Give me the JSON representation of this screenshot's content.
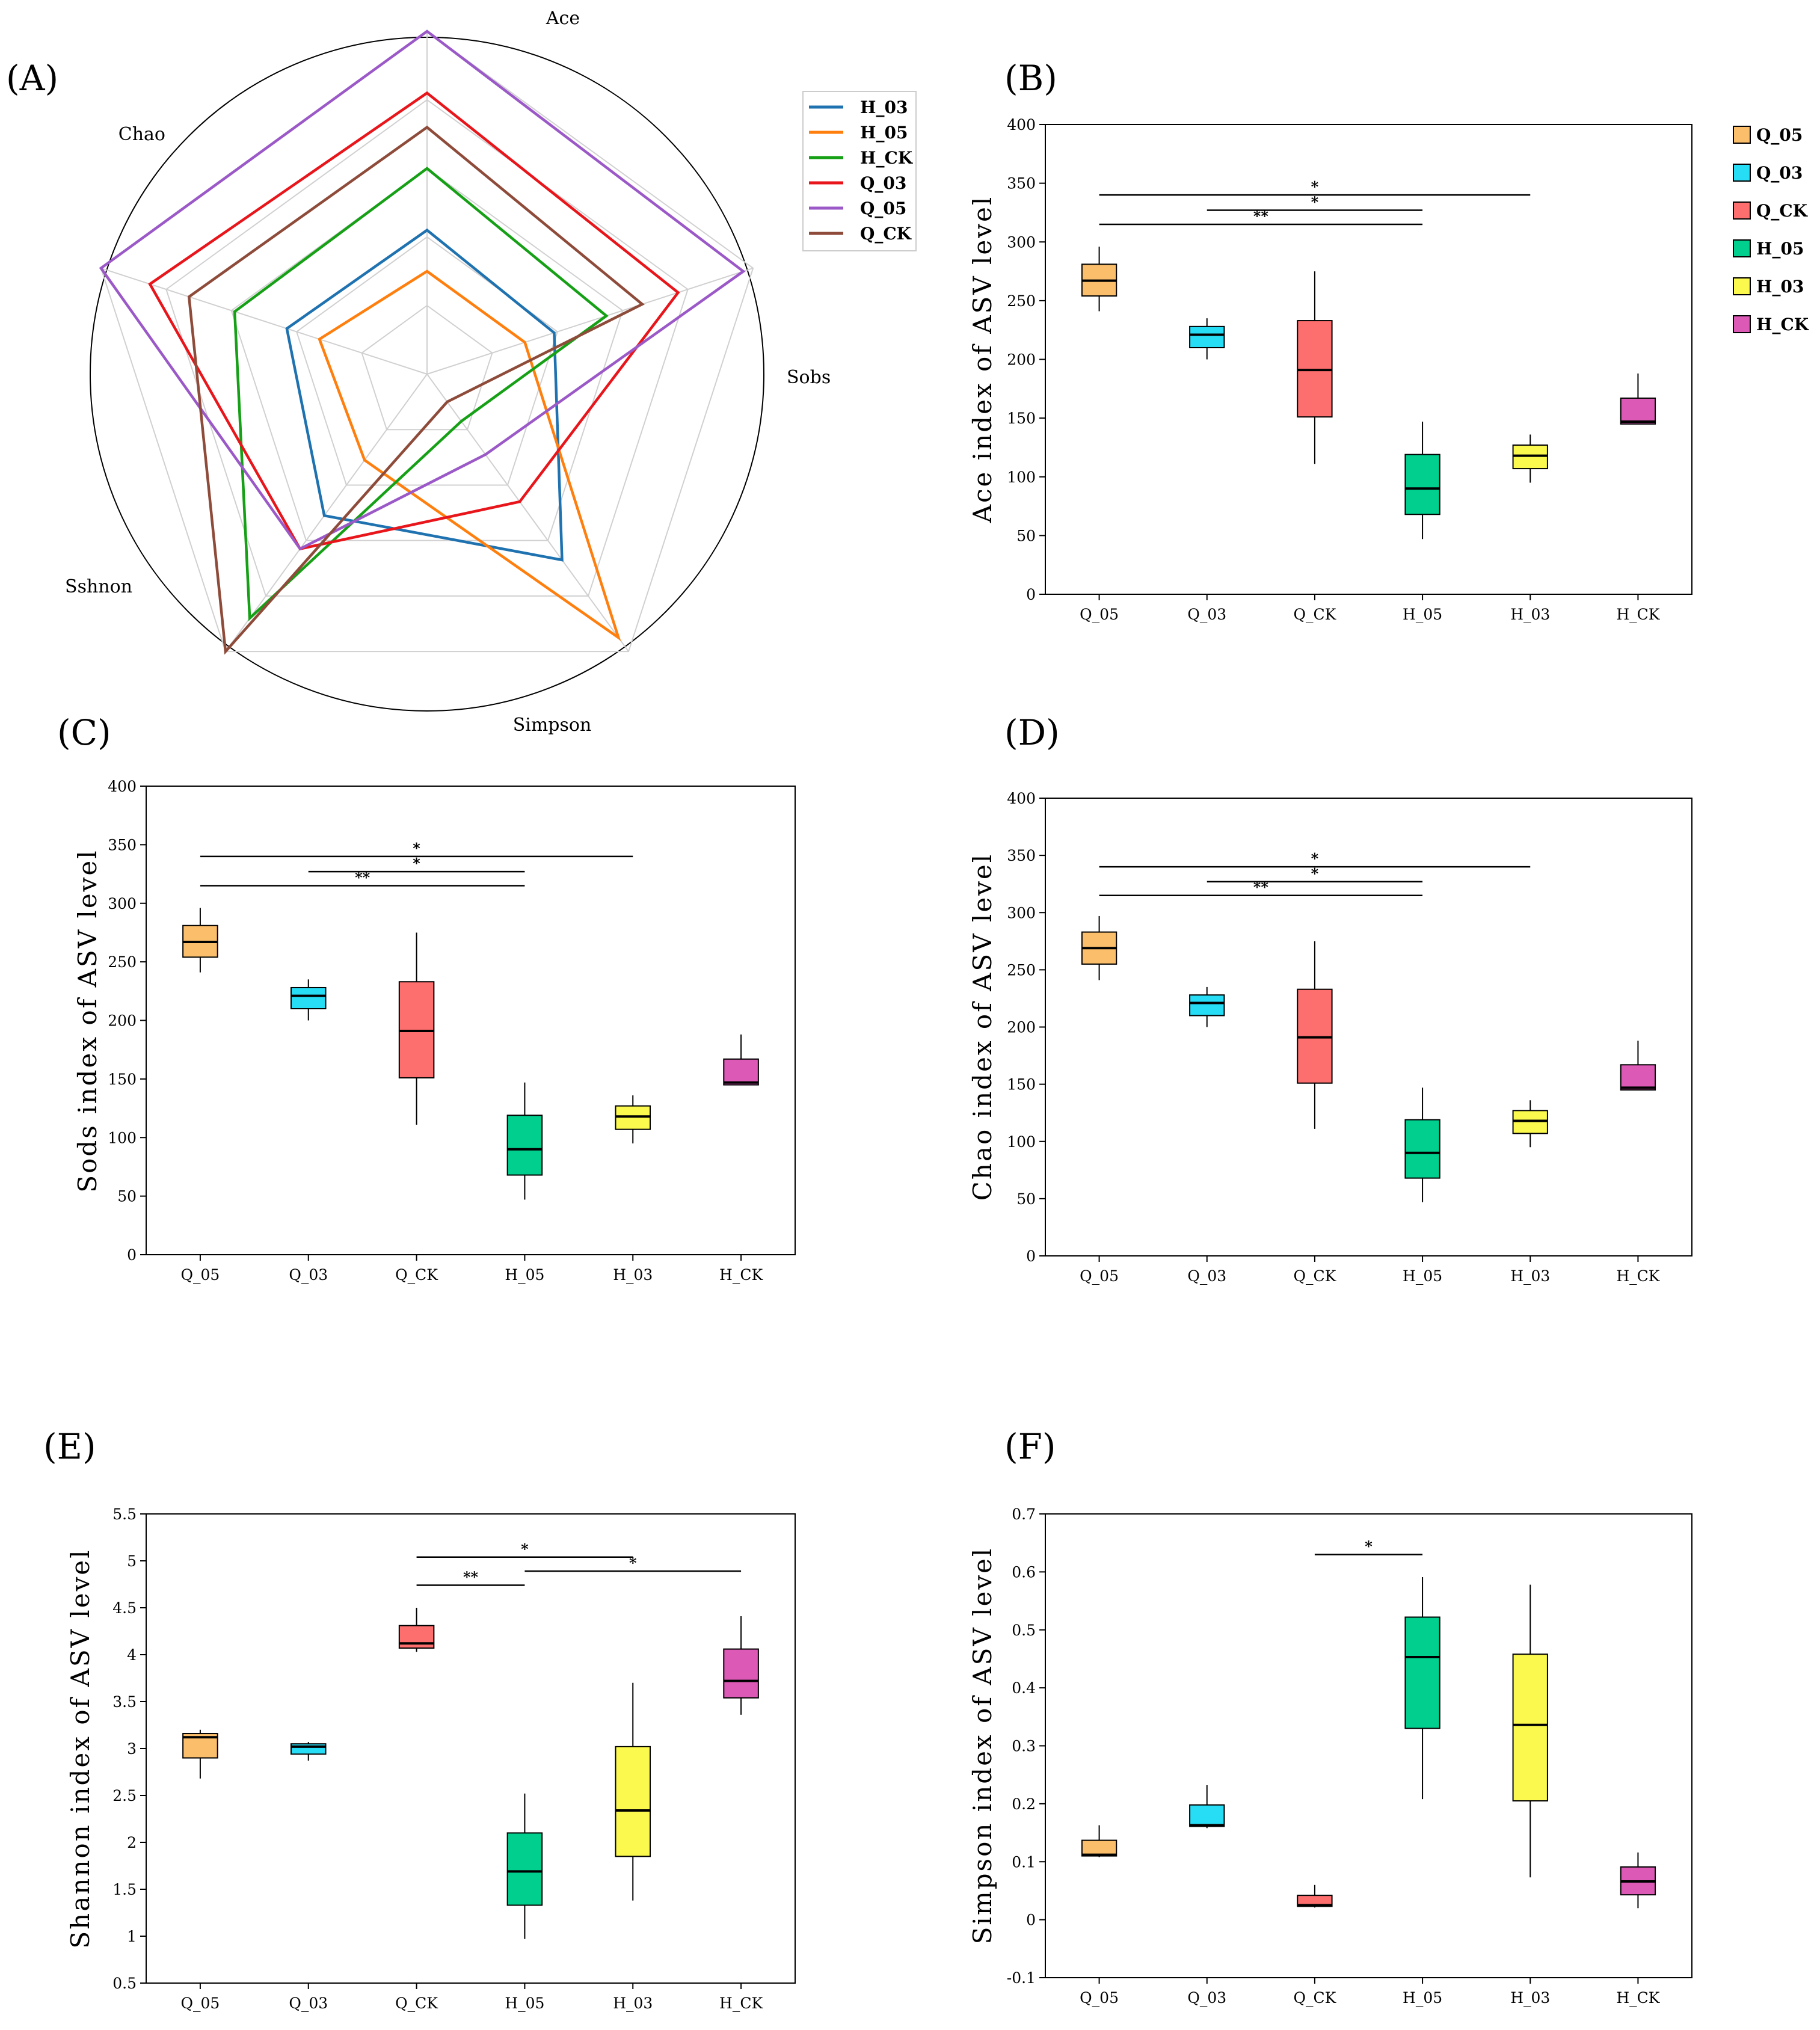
{
  "colors": {
    "Q_05": "#FBBE6B",
    "Q_03": "#27DDF6",
    "Q_CK": "#FD6E6E",
    "H_05": "#00CF8E",
    "H_03": "#FBF94E",
    "H_CK": "#DC5AB6"
  },
  "chart_data": [
    {
      "id": "A",
      "label": "(A)",
      "type": "radar",
      "axes": [
        "Ace",
        "Sobs",
        "Simpson",
        "Sshnon",
        "Chao"
      ],
      "series": [
        {
          "name": "H_03",
          "color": "#1F72B0",
          "values": [
            0.42,
            0.39,
            0.67,
            0.51,
            0.43
          ]
        },
        {
          "name": "H_05",
          "color": "#FF7F0E",
          "values": [
            0.3,
            0.3,
            0.95,
            0.31,
            0.33
          ]
        },
        {
          "name": "H_CK",
          "color": "#16A016",
          "values": [
            0.6,
            0.55,
            0.17,
            0.88,
            0.59
          ]
        },
        {
          "name": "Q_03",
          "color": "#E8151B",
          "values": [
            0.82,
            0.77,
            0.46,
            0.63,
            0.85
          ]
        },
        {
          "name": "Q_05",
          "color": "#9B59C8",
          "values": [
            1.0,
            0.97,
            0.29,
            0.63,
            1.0
          ]
        },
        {
          "name": "Q_CK",
          "color": "#8E4B3A",
          "values": [
            0.72,
            0.66,
            0.1,
            1.0,
            0.73
          ]
        }
      ]
    },
    {
      "id": "B",
      "label": "(B)",
      "type": "box",
      "ylabel": "Ace index of ASV level",
      "ylim": [
        0,
        400
      ],
      "ticks": [
        0,
        50,
        100,
        150,
        200,
        250,
        300,
        350,
        400
      ],
      "categories": [
        "Q_05",
        "Q_03",
        "Q_CK",
        "H_05",
        "H_03",
        "H_CK"
      ],
      "boxes": [
        {
          "name": "Q_05",
          "whislo": 241,
          "q1": 254,
          "med": 267,
          "q3": 281,
          "whishi": 296
        },
        {
          "name": "Q_03",
          "whislo": 200,
          "q1": 210,
          "med": 221,
          "q3": 228,
          "whishi": 235
        },
        {
          "name": "Q_CK",
          "whislo": 111,
          "q1": 151,
          "med": 191,
          "q3": 233,
          "whishi": 275
        },
        {
          "name": "H_05",
          "whislo": 47,
          "q1": 68,
          "med": 90,
          "q3": 119,
          "whishi": 147
        },
        {
          "name": "H_03",
          "whislo": 95,
          "q1": 107,
          "med": 118,
          "q3": 127,
          "whishi": 136
        },
        {
          "name": "H_CK",
          "whislo": 145,
          "q1": 145,
          "med": 147,
          "q3": 167,
          "whishi": 188
        }
      ],
      "sig": [
        {
          "from": 0,
          "to": 4,
          "y": 340,
          "label": "*"
        },
        {
          "from": 1,
          "to": 3,
          "y": 327,
          "label": "*"
        },
        {
          "from": 0,
          "to": 3,
          "y": 315,
          "label": "**"
        }
      ],
      "legend": [
        "Q_05",
        "Q_03",
        "Q_CK",
        "H_05",
        "H_03",
        "H_CK"
      ]
    },
    {
      "id": "C",
      "label": "(C)",
      "type": "box",
      "ylabel": "Sods index of ASV level",
      "ylim": [
        0,
        400
      ],
      "ticks": [
        0,
        50,
        100,
        150,
        200,
        250,
        300,
        350,
        400
      ],
      "categories": [
        "Q_05",
        "Q_03",
        "Q_CK",
        "H_05",
        "H_03",
        "H_CK"
      ],
      "boxes": [
        {
          "name": "Q_05",
          "whislo": 241,
          "q1": 254,
          "med": 267,
          "q3": 281,
          "whishi": 296
        },
        {
          "name": "Q_03",
          "whislo": 200,
          "q1": 210,
          "med": 221,
          "q3": 228,
          "whishi": 235
        },
        {
          "name": "Q_CK",
          "whislo": 111,
          "q1": 151,
          "med": 191,
          "q3": 233,
          "whishi": 275
        },
        {
          "name": "H_05",
          "whislo": 47,
          "q1": 68,
          "med": 90,
          "q3": 119,
          "whishi": 147
        },
        {
          "name": "H_03",
          "whislo": 95,
          "q1": 107,
          "med": 118,
          "q3": 127,
          "whishi": 136
        },
        {
          "name": "H_CK",
          "whislo": 145,
          "q1": 145,
          "med": 147,
          "q3": 167,
          "whishi": 188
        }
      ],
      "sig": [
        {
          "from": 0,
          "to": 4,
          "y": 340,
          "label": "*"
        },
        {
          "from": 1,
          "to": 3,
          "y": 327,
          "label": "*"
        },
        {
          "from": 0,
          "to": 3,
          "y": 315,
          "label": "**"
        }
      ]
    },
    {
      "id": "D",
      "label": "(D)",
      "type": "box",
      "ylabel": "Chao index of ASV level",
      "ylim": [
        0,
        400
      ],
      "ticks": [
        0,
        50,
        100,
        150,
        200,
        250,
        300,
        350,
        400
      ],
      "categories": [
        "Q_05",
        "Q_03",
        "Q_CK",
        "H_05",
        "H_03",
        "H_CK"
      ],
      "boxes": [
        {
          "name": "Q_05",
          "whislo": 241,
          "q1": 255,
          "med": 269,
          "q3": 283,
          "whishi": 297
        },
        {
          "name": "Q_03",
          "whislo": 200,
          "q1": 210,
          "med": 221,
          "q3": 228,
          "whishi": 235
        },
        {
          "name": "Q_CK",
          "whislo": 111,
          "q1": 151,
          "med": 191,
          "q3": 233,
          "whishi": 275
        },
        {
          "name": "H_05",
          "whislo": 47,
          "q1": 68,
          "med": 90,
          "q3": 119,
          "whishi": 147
        },
        {
          "name": "H_03",
          "whislo": 95,
          "q1": 107,
          "med": 118,
          "q3": 127,
          "whishi": 136
        },
        {
          "name": "H_CK",
          "whislo": 145,
          "q1": 145,
          "med": 147,
          "q3": 167,
          "whishi": 188
        }
      ],
      "sig": [
        {
          "from": 0,
          "to": 4,
          "y": 340,
          "label": "*"
        },
        {
          "from": 1,
          "to": 3,
          "y": 327,
          "label": "*"
        },
        {
          "from": 0,
          "to": 3,
          "y": 315,
          "label": "**"
        }
      ]
    },
    {
      "id": "E",
      "label": "(E)",
      "type": "box",
      "ylabel": "Shannon index of ASV level",
      "ylim": [
        0.5,
        5.5
      ],
      "ticks": [
        0.5,
        1,
        1.5,
        2,
        2.5,
        3,
        3.5,
        4,
        4.5,
        5,
        5.5
      ],
      "categories": [
        "Q_05",
        "Q_03",
        "Q_CK",
        "H_05",
        "H_03",
        "H_CK"
      ],
      "boxes": [
        {
          "name": "Q_05",
          "whislo": 2.68,
          "q1": 2.9,
          "med": 3.12,
          "q3": 3.16,
          "whishi": 3.2
        },
        {
          "name": "Q_03",
          "whislo": 2.87,
          "q1": 2.94,
          "med": 3.02,
          "q3": 3.05,
          "whishi": 3.07
        },
        {
          "name": "Q_CK",
          "whislo": 4.03,
          "q1": 4.07,
          "med": 4.12,
          "q3": 4.31,
          "whishi": 4.5
        },
        {
          "name": "H_05",
          "whislo": 0.97,
          "q1": 1.33,
          "med": 1.69,
          "q3": 2.1,
          "whishi": 2.52
        },
        {
          "name": "H_03",
          "whislo": 1.38,
          "q1": 1.85,
          "med": 2.34,
          "q3": 3.02,
          "whishi": 3.7
        },
        {
          "name": "H_CK",
          "whislo": 3.36,
          "q1": 3.54,
          "med": 3.72,
          "q3": 4.06,
          "whishi": 4.41
        }
      ],
      "sig": [
        {
          "from": 2,
          "to": 4,
          "y": 5.04,
          "label": "*"
        },
        {
          "from": 3,
          "to": 5,
          "y": 4.89,
          "label": "*"
        },
        {
          "from": 2,
          "to": 3,
          "y": 4.74,
          "label": "**"
        }
      ]
    },
    {
      "id": "F",
      "label": "(F)",
      "type": "box",
      "ylabel": "Simpson index of ASV level",
      "ylim": [
        -0.1,
        0.7
      ],
      "ticks": [
        -0.1,
        0,
        0.1,
        0.2,
        0.3,
        0.4,
        0.5,
        0.6,
        0.7
      ],
      "categories": [
        "Q_05",
        "Q_03",
        "Q_CK",
        "H_05",
        "H_03",
        "H_CK"
      ],
      "boxes": [
        {
          "name": "Q_05",
          "whislo": 0.108,
          "q1": 0.11,
          "med": 0.112,
          "q3": 0.137,
          "whishi": 0.163
        },
        {
          "name": "Q_03",
          "whislo": 0.158,
          "q1": 0.161,
          "med": 0.163,
          "q3": 0.198,
          "whishi": 0.232
        },
        {
          "name": "Q_CK",
          "whislo": 0.021,
          "q1": 0.023,
          "med": 0.025,
          "q3": 0.042,
          "whishi": 0.06
        },
        {
          "name": "H_05",
          "whislo": 0.208,
          "q1": 0.33,
          "med": 0.453,
          "q3": 0.522,
          "whishi": 0.591
        },
        {
          "name": "H_03",
          "whislo": 0.073,
          "q1": 0.205,
          "med": 0.336,
          "q3": 0.458,
          "whishi": 0.578
        },
        {
          "name": "H_CK",
          "whislo": 0.02,
          "q1": 0.043,
          "med": 0.066,
          "q3": 0.091,
          "whishi": 0.116
        }
      ],
      "sig": [
        {
          "from": 2,
          "to": 3,
          "y": 0.63,
          "label": "*"
        }
      ]
    }
  ]
}
